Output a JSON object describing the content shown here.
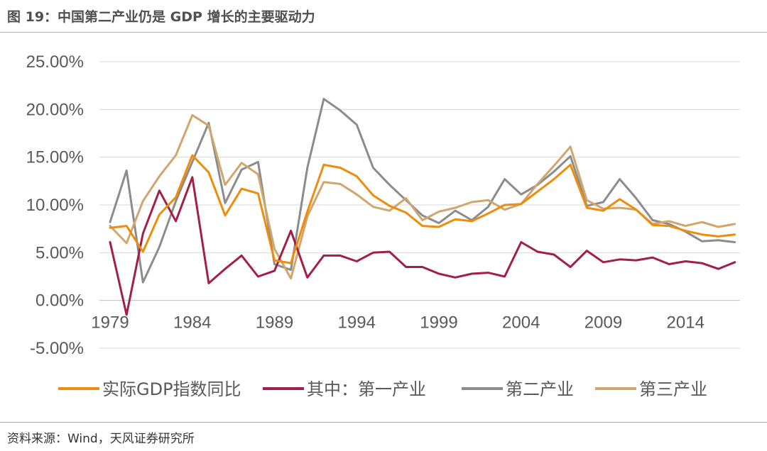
{
  "figure": {
    "title": "图 19：中国第二产业仍是 GDP 增长的主要驱动力",
    "source": "资料来源：Wind，天风证券研究所"
  },
  "chart_data": {
    "type": "line",
    "x": [
      1979,
      1980,
      1981,
      1982,
      1983,
      1984,
      1985,
      1986,
      1987,
      1988,
      1989,
      1990,
      1991,
      1992,
      1993,
      1994,
      1995,
      1996,
      1997,
      1998,
      1999,
      2000,
      2001,
      2002,
      2003,
      2004,
      2005,
      2006,
      2007,
      2008,
      2009,
      2010,
      2011,
      2012,
      2013,
      2014,
      2015,
      2016,
      2017
    ],
    "x_ticks": [
      "1979",
      "1984",
      "1989",
      "1994",
      "1999",
      "2004",
      "2009",
      "2014"
    ],
    "y_ticks": [
      "25.00%",
      "20.00%",
      "15.00%",
      "10.00%",
      "5.00%",
      "0.00%",
      "-5.00%"
    ],
    "ylim": [
      -5,
      25
    ],
    "grid": true,
    "legend_position": "bottom",
    "series": [
      {
        "name": "实际GDP指数同比",
        "color": "#ee8c0e",
        "values": [
          7.6,
          7.8,
          5.1,
          9.0,
          10.8,
          15.2,
          13.4,
          8.9,
          11.7,
          11.2,
          4.2,
          3.9,
          9.3,
          14.2,
          13.9,
          13.0,
          11.0,
          9.9,
          9.2,
          7.8,
          7.7,
          8.5,
          8.3,
          9.1,
          10.0,
          10.1,
          11.4,
          12.7,
          14.2,
          9.7,
          9.4,
          10.6,
          9.5,
          7.9,
          7.8,
          7.3,
          6.9,
          6.7,
          6.9
        ]
      },
      {
        "name": "其中：第一产业",
        "color": "#a31f48",
        "values": [
          6.1,
          -1.5,
          7.0,
          11.5,
          8.3,
          12.9,
          1.8,
          3.3,
          4.7,
          2.5,
          3.1,
          7.3,
          2.4,
          4.7,
          4.7,
          4.1,
          5.0,
          5.1,
          3.5,
          3.5,
          2.8,
          2.4,
          2.8,
          2.9,
          2.5,
          6.1,
          5.1,
          4.8,
          3.5,
          5.2,
          4.0,
          4.3,
          4.2,
          4.5,
          3.8,
          4.1,
          3.9,
          3.3,
          4.0
        ]
      },
      {
        "name": "第二产业",
        "color": "#8c8c8c",
        "values": [
          8.2,
          13.6,
          1.9,
          5.6,
          10.4,
          14.5,
          18.6,
          10.2,
          13.7,
          14.5,
          3.8,
          3.2,
          13.9,
          21.1,
          19.9,
          18.4,
          13.9,
          12.1,
          10.5,
          8.9,
          8.1,
          9.4,
          8.4,
          9.8,
          12.7,
          11.1,
          12.1,
          13.5,
          15.1,
          9.9,
          10.3,
          12.7,
          10.7,
          8.4,
          8.0,
          7.2,
          6.2,
          6.3,
          6.1
        ]
      },
      {
        "name": "第三产业",
        "color": "#cfa66e",
        "values": [
          7.8,
          6.0,
          10.4,
          13.0,
          15.2,
          19.4,
          18.3,
          12.1,
          14.4,
          13.2,
          5.4,
          2.3,
          8.8,
          12.4,
          12.2,
          11.1,
          9.8,
          9.4,
          10.7,
          8.4,
          9.3,
          9.7,
          10.3,
          10.5,
          9.5,
          10.1,
          12.2,
          14.1,
          16.1,
          10.5,
          9.6,
          9.7,
          9.5,
          8.0,
          8.3,
          7.8,
          8.2,
          7.7,
          8.0
        ]
      }
    ]
  }
}
